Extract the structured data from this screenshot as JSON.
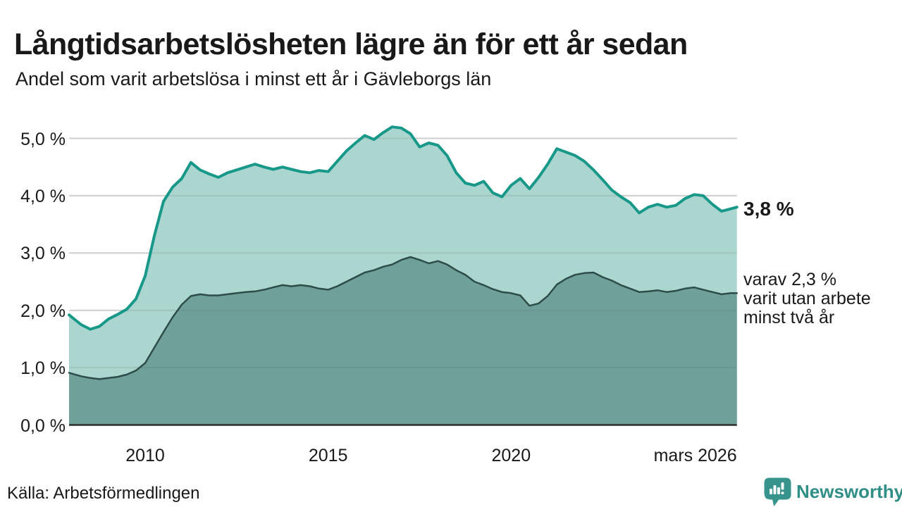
{
  "header": {
    "title": "Långtidsarbetslösheten lägre än för ett år sedan",
    "subtitle": "Andel som varit arbetslösa i minst ett år i Gävleborgs län"
  },
  "annotations": {
    "primary": "3,8 %",
    "secondary_lines": [
      "varav 2,3 %",
      "varit utan arbete",
      "minst två år"
    ]
  },
  "footer": {
    "source": "Källa: Arbetsförmedlingen",
    "logo_text": "Newsworthy"
  },
  "chart_data": {
    "type": "area",
    "title": "Långtidsarbetslösheten lägre än för ett år sedan",
    "subtitle": "Andel som varit arbetslösa i minst ett år i Gävleborgs län",
    "xlabel": "",
    "ylabel": "",
    "grid": "on",
    "legend": "none",
    "x_unit": "decimal year",
    "y_unit": "percent",
    "x": [
      2007.92,
      2008.25,
      2008.5,
      2008.75,
      2009,
      2009.25,
      2009.5,
      2009.75,
      2010,
      2010.25,
      2010.5,
      2010.75,
      2011,
      2011.25,
      2011.5,
      2011.75,
      2012,
      2012.25,
      2012.5,
      2012.75,
      2013,
      2013.25,
      2013.5,
      2013.75,
      2014,
      2014.25,
      2014.5,
      2014.75,
      2015,
      2015.25,
      2015.5,
      2015.75,
      2016,
      2016.25,
      2016.5,
      2016.75,
      2017,
      2017.25,
      2017.5,
      2017.75,
      2018,
      2018.25,
      2018.5,
      2018.75,
      2019,
      2019.25,
      2019.5,
      2019.75,
      2020,
      2020.25,
      2020.5,
      2020.75,
      2021,
      2021.25,
      2021.5,
      2021.75,
      2022,
      2022.25,
      2022.5,
      2022.75,
      2023,
      2023.25,
      2023.5,
      2023.75,
      2024,
      2024.25,
      2024.5,
      2024.75,
      2025,
      2025.25,
      2025.5,
      2025.75,
      2026,
      2026.17
    ],
    "series": [
      {
        "name": "Andel arbetslösa minst ett år",
        "latest_label": "3,8 %",
        "latest_value": 3.8,
        "fill": "#aad6cf",
        "stroke": "#179889",
        "values": [
          1.92,
          1.75,
          1.67,
          1.72,
          1.85,
          1.93,
          2.02,
          2.2,
          2.6,
          3.3,
          3.9,
          4.15,
          4.3,
          4.58,
          4.45,
          4.38,
          4.32,
          4.4,
          4.45,
          4.5,
          4.55,
          4.5,
          4.46,
          4.5,
          4.46,
          4.42,
          4.4,
          4.44,
          4.42,
          4.6,
          4.78,
          4.92,
          5.05,
          4.98,
          5.1,
          5.2,
          5.18,
          5.08,
          4.85,
          4.92,
          4.88,
          4.7,
          4.4,
          4.22,
          4.18,
          4.25,
          4.05,
          3.98,
          4.18,
          4.3,
          4.12,
          4.32,
          4.55,
          4.82,
          4.76,
          4.7,
          4.6,
          4.45,
          4.28,
          4.1,
          3.98,
          3.88,
          3.7,
          3.8,
          3.85,
          3.8,
          3.83,
          3.95,
          4.02,
          4.0,
          3.85,
          3.73,
          3.77,
          3.8
        ]
      },
      {
        "name": "Andel arbetslösa minst två år",
        "latest_label": "2,3 %",
        "latest_value": 2.3,
        "fill": "#6fa19a",
        "stroke": "#2e4d49",
        "values": [
          0.91,
          0.85,
          0.82,
          0.8,
          0.82,
          0.84,
          0.88,
          0.95,
          1.08,
          1.35,
          1.62,
          1.88,
          2.1,
          2.25,
          2.28,
          2.26,
          2.26,
          2.28,
          2.3,
          2.32,
          2.33,
          2.36,
          2.4,
          2.44,
          2.42,
          2.44,
          2.42,
          2.38,
          2.36,
          2.42,
          2.5,
          2.58,
          2.66,
          2.7,
          2.76,
          2.8,
          2.88,
          2.93,
          2.88,
          2.82,
          2.86,
          2.8,
          2.7,
          2.62,
          2.5,
          2.44,
          2.37,
          2.32,
          2.3,
          2.26,
          2.08,
          2.12,
          2.25,
          2.45,
          2.55,
          2.62,
          2.65,
          2.66,
          2.58,
          2.52,
          2.44,
          2.38,
          2.32,
          2.33,
          2.35,
          2.32,
          2.34,
          2.38,
          2.4,
          2.36,
          2.32,
          2.28,
          2.3,
          2.3
        ]
      }
    ],
    "y_axis": {
      "range": [
        0,
        5.25
      ],
      "tick_values": [
        5,
        4,
        3,
        2,
        1,
        0
      ],
      "tick_labels": [
        "5,0 %",
        "4,0 %",
        "3,0 %",
        "2,0 %",
        "1,0 %",
        "0,0 %"
      ]
    },
    "x_axis": {
      "range": [
        2007.92,
        2026.17
      ],
      "ticks": [
        {
          "v": 2010,
          "label": "2010"
        },
        {
          "v": 2015,
          "label": "2015"
        },
        {
          "v": 2020,
          "label": "2020"
        },
        {
          "v": 2026.17,
          "label": "mars 2026",
          "anchor": "end"
        }
      ]
    },
    "colors": {
      "grid": "#e1e1e1",
      "baseline": "#2d2d2d",
      "text": "#191919",
      "accent_teal": "#179889",
      "logo_teal": "#2f8f86",
      "logo_icon": "#37948c"
    }
  }
}
